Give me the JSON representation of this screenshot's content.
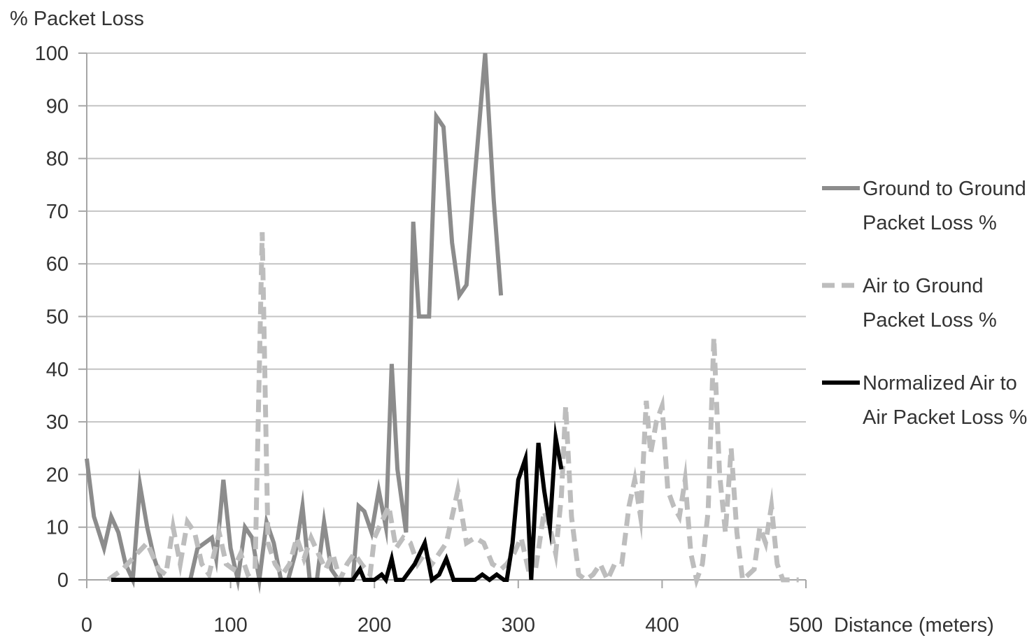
{
  "chart_data": {
    "type": "line",
    "ylabel": "% Packet Loss",
    "xlabel": "Distance (meters)",
    "xlim": [
      0,
      500
    ],
    "ylim": [
      0,
      100
    ],
    "xticks": [
      0,
      100,
      200,
      300,
      400,
      500
    ],
    "yticks": [
      0,
      10,
      20,
      30,
      40,
      50,
      60,
      70,
      80,
      90,
      100
    ],
    "grid": "horizontal",
    "legend_position": "right",
    "series": [
      {
        "name": [
          "Ground to Ground",
          "Packet Loss %"
        ],
        "color": "#8c8c8c",
        "style": "solid",
        "points": [
          [
            0,
            23
          ],
          [
            5,
            12
          ],
          [
            12,
            6
          ],
          [
            17,
            12
          ],
          [
            22,
            9
          ],
          [
            27,
            3
          ],
          [
            32,
            0
          ],
          [
            37,
            18
          ],
          [
            42,
            10
          ],
          [
            47,
            4
          ],
          [
            52,
            0
          ],
          [
            57,
            0
          ],
          [
            62,
            0
          ],
          [
            67,
            0
          ],
          [
            72,
            0
          ],
          [
            77,
            6
          ],
          [
            82,
            7
          ],
          [
            87,
            8
          ],
          [
            90,
            4
          ],
          [
            95,
            19
          ],
          [
            100,
            6
          ],
          [
            105,
            0
          ],
          [
            110,
            10
          ],
          [
            115,
            8
          ],
          [
            120,
            0
          ],
          [
            125,
            11
          ],
          [
            130,
            7
          ],
          [
            135,
            0
          ],
          [
            140,
            0
          ],
          [
            145,
            5
          ],
          [
            150,
            14
          ],
          [
            155,
            0
          ],
          [
            160,
            0
          ],
          [
            165,
            11
          ],
          [
            170,
            2
          ],
          [
            175,
            0
          ],
          [
            180,
            0
          ],
          [
            185,
            0
          ],
          [
            189,
            14
          ],
          [
            193,
            13
          ],
          [
            198,
            9
          ],
          [
            203,
            17
          ],
          [
            208,
            10
          ],
          [
            212,
            41
          ],
          [
            216,
            21
          ],
          [
            222,
            9
          ],
          [
            227,
            68
          ],
          [
            231,
            50
          ],
          [
            238,
            50
          ],
          [
            243,
            88
          ],
          [
            248,
            86
          ],
          [
            254,
            64
          ],
          [
            259,
            54
          ],
          [
            264,
            56
          ],
          [
            269,
            74
          ],
          [
            277,
            100
          ],
          [
            283,
            72
          ],
          [
            288,
            54
          ]
        ]
      },
      {
        "name": [
          "Air to Ground",
          "Packet Loss %"
        ],
        "color": "#bdbdbd",
        "style": "dashed",
        "points": [
          [
            15,
            0
          ],
          [
            25,
            2
          ],
          [
            35,
            5
          ],
          [
            42,
            7
          ],
          [
            50,
            2
          ],
          [
            55,
            1
          ],
          [
            60,
            10
          ],
          [
            65,
            3
          ],
          [
            70,
            11
          ],
          [
            75,
            9
          ],
          [
            80,
            3
          ],
          [
            85,
            1
          ],
          [
            92,
            9
          ],
          [
            97,
            3
          ],
          [
            102,
            2
          ],
          [
            107,
            5
          ],
          [
            112,
            1
          ],
          [
            117,
            2
          ],
          [
            122,
            66
          ],
          [
            126,
            7
          ],
          [
            131,
            3
          ],
          [
            136,
            1
          ],
          [
            141,
            3
          ],
          [
            146,
            8
          ],
          [
            151,
            4
          ],
          [
            156,
            8
          ],
          [
            161,
            5
          ],
          [
            166,
            2
          ],
          [
            171,
            5
          ],
          [
            176,
            0
          ],
          [
            181,
            3
          ],
          [
            186,
            5
          ],
          [
            191,
            3
          ],
          [
            197,
            1
          ],
          [
            200,
            8
          ],
          [
            205,
            11
          ],
          [
            210,
            14
          ],
          [
            215,
            6
          ],
          [
            220,
            8
          ],
          [
            225,
            7
          ],
          [
            230,
            3
          ],
          [
            235,
            5
          ],
          [
            240,
            3
          ],
          [
            245,
            5
          ],
          [
            250,
            7
          ],
          [
            258,
            17
          ],
          [
            264,
            7
          ],
          [
            270,
            8
          ],
          [
            276,
            7
          ],
          [
            282,
            3
          ],
          [
            288,
            2
          ],
          [
            292,
            3
          ],
          [
            297,
            5
          ],
          [
            302,
            8
          ],
          [
            307,
            2
          ],
          [
            312,
            2
          ],
          [
            318,
            13
          ],
          [
            322,
            10
          ],
          [
            326,
            5
          ],
          [
            330,
            16
          ],
          [
            333,
            33
          ],
          [
            337,
            12
          ],
          [
            342,
            1
          ],
          [
            347,
            0
          ],
          [
            352,
            1
          ],
          [
            357,
            3
          ],
          [
            362,
            0
          ],
          [
            367,
            3
          ],
          [
            372,
            3
          ],
          [
            377,
            14
          ],
          [
            381,
            19
          ],
          [
            385,
            12
          ],
          [
            389,
            34
          ],
          [
            392,
            24
          ],
          [
            396,
            30
          ],
          [
            400,
            33
          ],
          [
            404,
            17
          ],
          [
            408,
            14
          ],
          [
            412,
            12
          ],
          [
            416,
            19
          ],
          [
            420,
            5
          ],
          [
            424,
            0
          ],
          [
            428,
            3
          ],
          [
            432,
            13
          ],
          [
            436,
            46
          ],
          [
            440,
            20
          ],
          [
            444,
            9
          ],
          [
            448,
            25
          ],
          [
            452,
            9
          ],
          [
            456,
            0
          ],
          [
            460,
            1
          ],
          [
            464,
            2
          ],
          [
            468,
            10
          ],
          [
            472,
            7
          ],
          [
            476,
            14
          ],
          [
            480,
            3
          ],
          [
            484,
            0
          ],
          [
            488,
            0
          ],
          [
            495,
            0
          ]
        ]
      },
      {
        "name": [
          "Normalized Air to",
          "Air Packet Loss %"
        ],
        "color": "#000000",
        "style": "solid",
        "points": [
          [
            17,
            0
          ],
          [
            50,
            0
          ],
          [
            100,
            0
          ],
          [
            150,
            0
          ],
          [
            185,
            0
          ],
          [
            190,
            2
          ],
          [
            193,
            0
          ],
          [
            200,
            0
          ],
          [
            205,
            1
          ],
          [
            208,
            0
          ],
          [
            212,
            4
          ],
          [
            215,
            0
          ],
          [
            220,
            0
          ],
          [
            228,
            3
          ],
          [
            235,
            7
          ],
          [
            240,
            0
          ],
          [
            245,
            1
          ],
          [
            250,
            4
          ],
          [
            255,
            0
          ],
          [
            262,
            0
          ],
          [
            270,
            0
          ],
          [
            275,
            1
          ],
          [
            280,
            0
          ],
          [
            285,
            1
          ],
          [
            290,
            0
          ],
          [
            292,
            0
          ],
          [
            296,
            7
          ],
          [
            300,
            19
          ],
          [
            305,
            23
          ],
          [
            309,
            0
          ],
          [
            314,
            26
          ],
          [
            318,
            17
          ],
          [
            322,
            10
          ],
          [
            326,
            27
          ],
          [
            330,
            21
          ]
        ]
      }
    ]
  }
}
